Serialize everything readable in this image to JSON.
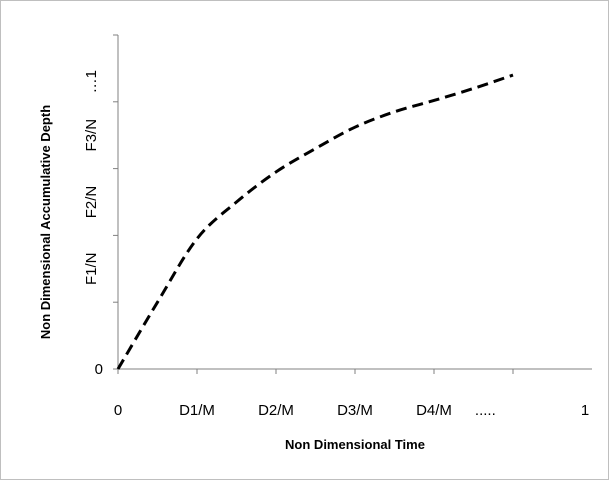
{
  "chart_data": {
    "type": "line",
    "title": "",
    "xlabel": "Non Dimensional Time",
    "ylabel": "Non Dimensional Accumulative Depth",
    "xlim": [
      0,
      5
    ],
    "ylim": [
      0,
      5
    ],
    "x_ticks": [
      0,
      1,
      2,
      3,
      4,
      5
    ],
    "y_ticks": [
      0,
      1,
      2,
      3,
      4,
      5
    ],
    "x_tick_labels": [
      {
        "x": 0,
        "text": "0"
      },
      {
        "x": 1,
        "text": "D1/M"
      },
      {
        "x": 2,
        "text": "D2/M"
      },
      {
        "x": 3,
        "text": "D3/M"
      },
      {
        "x": 4,
        "text": "D4/M"
      },
      {
        "x": 4.65,
        "text": "....."
      },
      {
        "x": 6,
        "text": "1"
      }
    ],
    "y_tick_labels": [
      {
        "y": 0,
        "text": "0"
      },
      {
        "y": 1.5,
        "text": "F1/N"
      },
      {
        "y": 2.5,
        "text": "F2/N"
      },
      {
        "y": 3.5,
        "text": "F3/N"
      },
      {
        "y": 4.3,
        "text": "…1"
      }
    ],
    "line_style": "dashed",
    "line_color": "#000000",
    "grid": false,
    "series": [
      {
        "x": [
          0,
          0.5,
          1,
          1.5,
          2,
          2.5,
          3,
          3.5,
          4,
          4.5,
          5
        ],
        "values": [
          0,
          1.0,
          1.95,
          2.5,
          2.95,
          3.3,
          3.62,
          3.85,
          4.02,
          4.2,
          4.4
        ]
      }
    ]
  }
}
